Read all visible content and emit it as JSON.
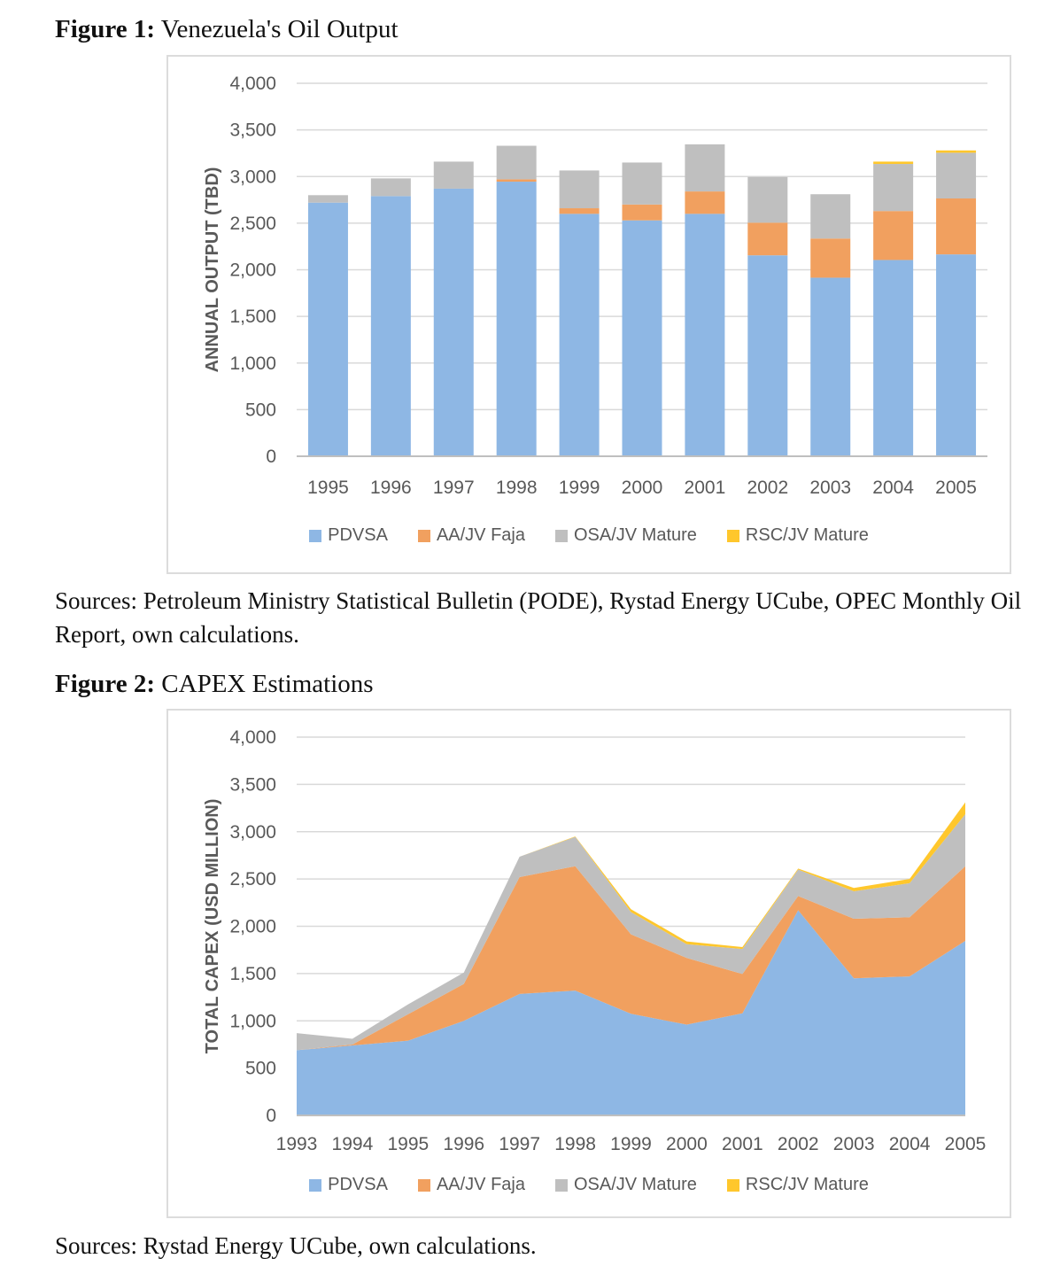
{
  "page": {
    "figure1": {
      "title_label": "Figure 1:",
      "title": " Venezuela's Oil Output",
      "sources": "Sources: Petroleum Ministry Statistical Bulletin (PODE), Rystad Energy UCube, OPEC Monthly Oil Report, own calculations."
    },
    "figure2": {
      "title_label": "Figure 2:",
      "title": " CAPEX Estimations",
      "sources": "Sources: Rystad Energy UCube, own calculations."
    }
  },
  "colors": {
    "pdvsa_blue": "#8EB7E4",
    "aajv_orange": "#F1A05F",
    "osajv_gray": "#BFBFBF",
    "rscjv_yellow": "#FFC72C",
    "gridline": "#D9D9D9",
    "axis_line": "#BFBFBF",
    "chart_text": "#595959"
  },
  "chart_data": [
    {
      "type": "bar",
      "stacked": true,
      "title": "Figure 1: Venezuela's Oil Output",
      "xlabel": "",
      "ylabel": "ANNUAL OUTPUT (TBD)",
      "ylim": [
        0,
        4000
      ],
      "ytick_step": 500,
      "grid": true,
      "legend_position": "bottom",
      "categories": [
        "1995",
        "1996",
        "1997",
        "1998",
        "1999",
        "2000",
        "2001",
        "2002",
        "2003",
        "2004",
        "2005"
      ],
      "series": [
        {
          "name": "PDVSA",
          "color": "#8EB7E4",
          "values": [
            2720,
            2790,
            2870,
            2945,
            2600,
            2530,
            2600,
            2155,
            1915,
            2105,
            2165
          ]
        },
        {
          "name": "AA/JV Faja",
          "color": "#F1A05F",
          "values": [
            0,
            0,
            0,
            25,
            60,
            170,
            240,
            350,
            420,
            525,
            600
          ]
        },
        {
          "name": "OSA/JV Mature",
          "color": "#BFBFBF",
          "values": [
            80,
            190,
            290,
            360,
            405,
            450,
            505,
            490,
            475,
            505,
            490
          ]
        },
        {
          "name": "RSC/JV Mature",
          "color": "#FFC72C",
          "values": [
            0,
            0,
            0,
            0,
            0,
            0,
            0,
            0,
            0,
            25,
            25
          ]
        }
      ]
    },
    {
      "type": "area",
      "stacked": true,
      "title": "Figure 2: CAPEX Estimations",
      "xlabel": "",
      "ylabel": "TOTAL CAPEX (USD MILLION)",
      "ylim": [
        0,
        4000
      ],
      "ytick_step": 500,
      "grid": true,
      "legend_position": "bottom",
      "categories": [
        "1993",
        "1994",
        "1995",
        "1996",
        "1997",
        "1998",
        "1999",
        "2000",
        "2001",
        "2002",
        "2003",
        "2004",
        "2005"
      ],
      "series": [
        {
          "name": "PDVSA",
          "color": "#8EB7E4",
          "values": [
            690,
            740,
            790,
            1000,
            1285,
            1320,
            1075,
            960,
            1080,
            2170,
            1450,
            1470,
            1845
          ]
        },
        {
          "name": "AA/JV Faja",
          "color": "#F1A05F",
          "values": [
            0,
            10,
            280,
            390,
            1235,
            1315,
            840,
            705,
            415,
            150,
            630,
            625,
            790
          ]
        },
        {
          "name": "OSA/JV Mature",
          "color": "#BFBFBF",
          "values": [
            180,
            60,
            105,
            120,
            215,
            310,
            235,
            145,
            265,
            280,
            290,
            360,
            550
          ]
        },
        {
          "name": "RSC/JV Mature",
          "color": "#FFC72C",
          "values": [
            0,
            0,
            0,
            0,
            0,
            5,
            30,
            30,
            20,
            10,
            35,
            45,
            125
          ]
        }
      ]
    }
  ]
}
